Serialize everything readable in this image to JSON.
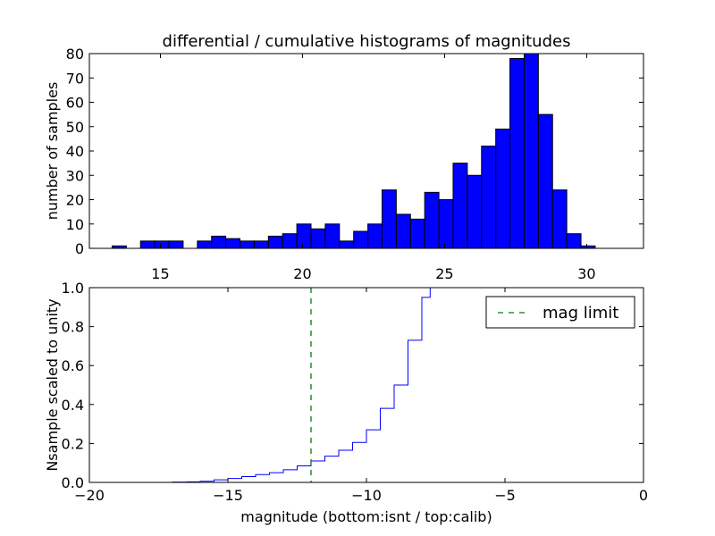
{
  "chart_data": [
    {
      "type": "bar",
      "title": "differential / cumulative histograms of magnitudes",
      "ylabel": "number of samples",
      "xlabel": "",
      "xlim": [
        12.5,
        32
      ],
      "ylim": [
        0,
        80
      ],
      "xticks": [
        "15",
        "20",
        "25",
        "30"
      ],
      "yticks": [
        "0",
        "10",
        "20",
        "30",
        "40",
        "50",
        "60",
        "70",
        "80"
      ],
      "bar_color": "#0000ff",
      "bin_width": 0.5,
      "bin_left_edges": [
        12.8,
        13.3,
        13.8,
        14.3,
        14.8,
        15.3,
        15.8,
        16.3,
        16.8,
        17.3,
        17.8,
        18.3,
        18.8,
        19.3,
        19.8,
        20.3,
        20.8,
        21.3,
        21.8,
        22.3,
        22.8,
        23.3,
        23.8,
        24.3,
        24.8,
        25.3,
        25.8,
        26.3,
        26.8,
        27.3,
        27.8,
        28.3,
        28.8,
        29.3,
        29.8,
        30.3,
        30.8,
        31.3
      ],
      "values": [
        0,
        1,
        0,
        3,
        3,
        3,
        0,
        3,
        5,
        4,
        3,
        3,
        5,
        6,
        10,
        8,
        10,
        3,
        7,
        10,
        24,
        14,
        12,
        23,
        20,
        35,
        30,
        42,
        49,
        78,
        80,
        55,
        24,
        6,
        1,
        0,
        0,
        0
      ]
    },
    {
      "type": "line",
      "xlabel": "magnitude (bottom:isnt / top:calib)",
      "ylabel": "Nsample scaled to unity",
      "xlim": [
        -20,
        0
      ],
      "ylim": [
        0,
        1.0
      ],
      "xticks": [
        "−20",
        "−15",
        "−10",
        "−5",
        "0"
      ],
      "yticks": [
        "0.0",
        "0.2",
        "0.4",
        "0.6",
        "0.8",
        "1.0"
      ],
      "series": [
        {
          "style": "step",
          "color": "#0000ff",
          "x": [
            -20,
            -17.0,
            -16.5,
            -16.0,
            -15.5,
            -15.0,
            -14.5,
            -14.0,
            -13.5,
            -13.0,
            -12.5,
            -12.0,
            -11.5,
            -11.0,
            -10.5,
            -10.0,
            -9.5,
            -9.0,
            -8.5,
            -8.0,
            -7.7
          ],
          "y": [
            0,
            0.002,
            0.003,
            0.006,
            0.013,
            0.02,
            0.03,
            0.04,
            0.05,
            0.065,
            0.085,
            0.11,
            0.135,
            0.165,
            0.205,
            0.27,
            0.38,
            0.5,
            0.73,
            0.95,
            1.0
          ]
        },
        {
          "name": "mag limit",
          "style": "dashed-vertical",
          "color": "#008000",
          "x": -12
        }
      ],
      "legend_position": "top-right"
    }
  ]
}
